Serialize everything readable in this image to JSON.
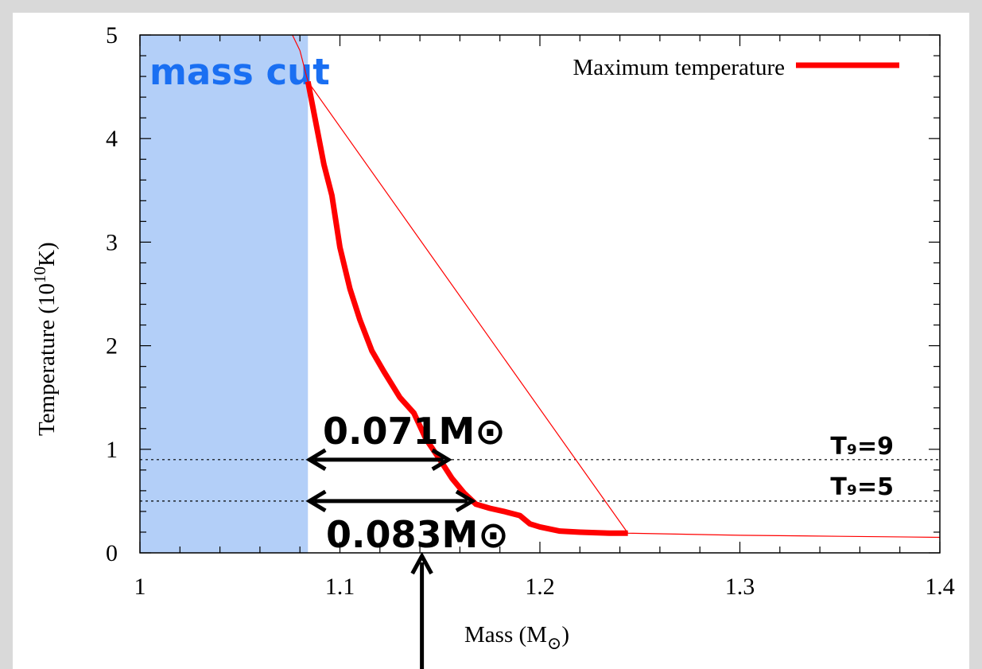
{
  "chart_data": {
    "type": "line",
    "xlabel_main": "Mass (M",
    "xlabel_sub": "⊙",
    "xlabel_end": ")",
    "ylabel_main": "Temperature (10",
    "ylabel_sup": "10",
    "ylabel_end": "K)",
    "xlim": [
      1.0,
      1.4
    ],
    "ylim": [
      0,
      5
    ],
    "x_ticks": [
      {
        "value": 1.0,
        "label": "1"
      },
      {
        "value": 1.1,
        "label": "1.1"
      },
      {
        "value": 1.2,
        "label": "1.2"
      },
      {
        "value": 1.3,
        "label": "1.3"
      },
      {
        "value": 1.4,
        "label": "1.4"
      }
    ],
    "y_ticks": [
      {
        "value": 0,
        "label": "0"
      },
      {
        "value": 1,
        "label": "1"
      },
      {
        "value": 2,
        "label": "2"
      },
      {
        "value": 3,
        "label": "3"
      },
      {
        "value": 4,
        "label": "4"
      },
      {
        "value": 5,
        "label": "5"
      }
    ],
    "legend": {
      "label": "Maximum temperature",
      "position": "top-right",
      "color": "#ff0000"
    },
    "series": [
      {
        "name": "Maximum temperature",
        "color": "#ff0000",
        "thick_x": [
          1.084,
          1.087,
          1.092,
          1.096,
          1.1,
          1.105,
          1.11,
          1.116,
          1.122,
          1.13,
          1.137,
          1.143,
          1.15,
          1.156,
          1.162,
          1.168,
          1.175,
          1.182,
          1.19,
          1.195,
          1.2,
          1.21,
          1.22,
          1.235,
          1.244
        ],
        "thick_y": [
          4.55,
          4.25,
          3.75,
          3.45,
          2.95,
          2.55,
          2.25,
          1.95,
          1.75,
          1.5,
          1.35,
          1.1,
          0.9,
          0.72,
          0.58,
          0.47,
          0.43,
          0.4,
          0.36,
          0.28,
          0.25,
          0.21,
          0.2,
          0.19,
          0.19
        ],
        "thin_x": [
          1.075,
          1.08,
          1.084,
          1.244,
          1.3,
          1.35,
          1.4
        ],
        "thin_y": [
          5.05,
          4.85,
          4.55,
          0.19,
          0.17,
          0.16,
          0.15
        ]
      }
    ],
    "shaded_region": {
      "label": "mass cut",
      "x_from": 1.0,
      "x_to": 1.084,
      "color": "#b3cff8",
      "label_color": "#1a6ff2"
    },
    "reference_lines": [
      {
        "y": 0.9,
        "label": "T₉=9"
      },
      {
        "y": 0.5,
        "label": "T₉=5"
      }
    ],
    "annotations": [
      {
        "text": "0.071M⊙",
        "from_x": 1.084,
        "to_x": 1.155,
        "y": 0.9
      },
      {
        "text": "0.083M⊙",
        "from_x": 1.084,
        "to_x": 1.167,
        "y": 0.5
      }
    ],
    "pointer_arrow": {
      "x": 1.141
    },
    "grid": false
  }
}
